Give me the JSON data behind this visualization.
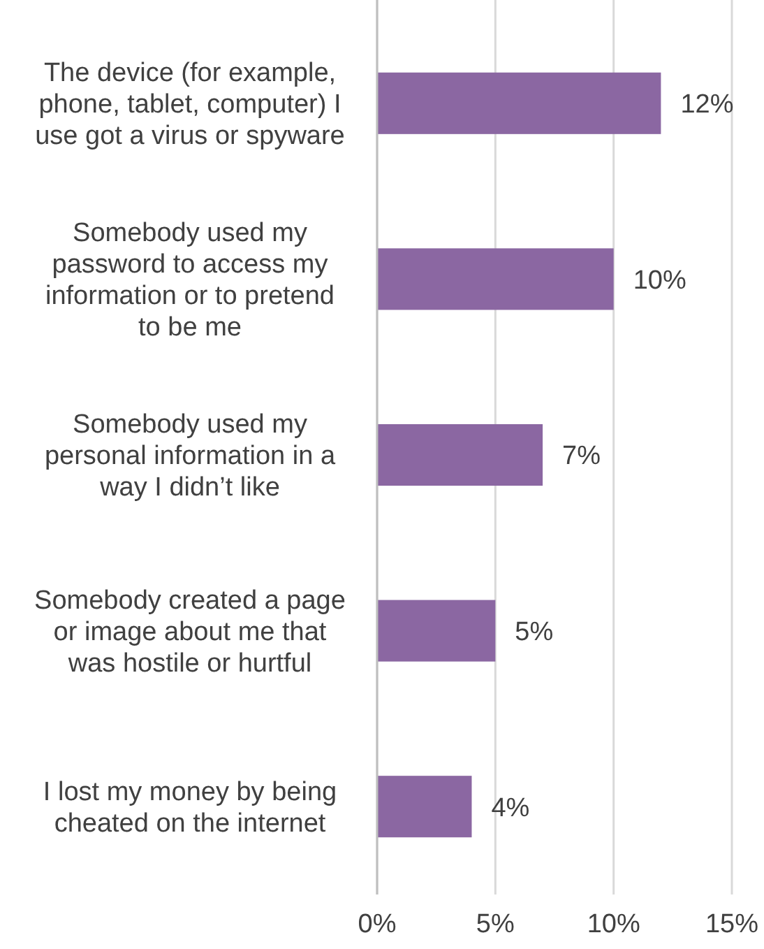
{
  "chart_data": {
    "type": "bar",
    "orientation": "horizontal",
    "categories": [
      "The device (for example, phone, tablet, computer) I use got a virus or spyware",
      "Somebody used my password to access my information or to pretend to be me",
      "Somebody used my personal information in a way I didn’t like",
      "Somebody created a page or image about me that was hostile or hurtful",
      "I lost my money by being cheated on the internet"
    ],
    "values": [
      12,
      10,
      7,
      5,
      4
    ],
    "value_labels": [
      "12%",
      "10%",
      "7%",
      "5%",
      "4%"
    ],
    "color": "#8b67a2",
    "xlim": [
      0,
      15
    ],
    "xticks": [
      {
        "value": 0,
        "label": "0%"
      },
      {
        "value": 5,
        "label": "5%"
      },
      {
        "value": 10,
        "label": "10%"
      },
      {
        "value": 15,
        "label": "15%"
      }
    ],
    "grid": "x"
  }
}
